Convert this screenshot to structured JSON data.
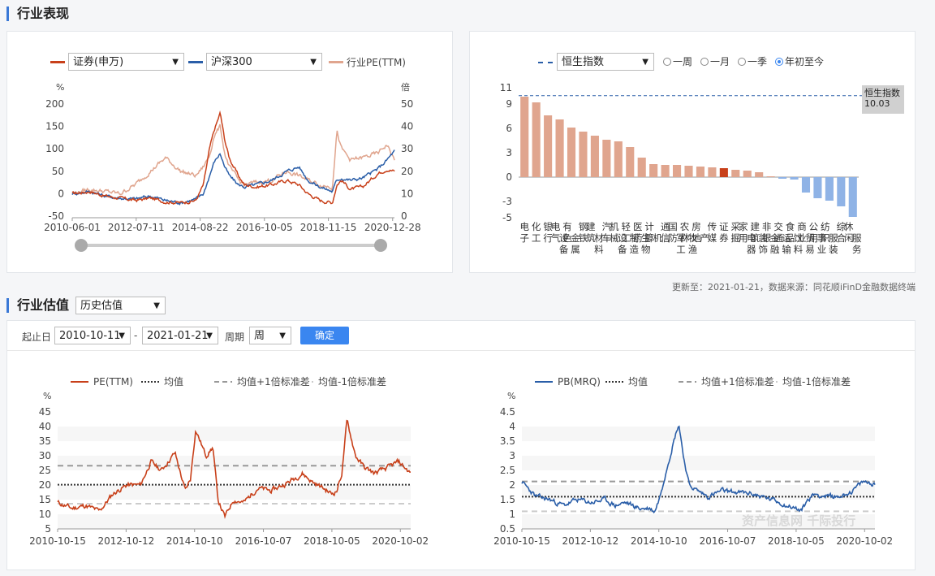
{
  "sections": {
    "industry_perf": "行业表现",
    "industry_val": "行业估值"
  },
  "perf_controls": {
    "legend": [
      {
        "label": "证券(申万)",
        "color": "#c8401a"
      },
      {
        "label": "沪深300",
        "color": "#2a5ea8"
      },
      {
        "label": "行业PE(TTM)",
        "color": "#e0a58e"
      }
    ]
  },
  "bar_controls": {
    "index_label": "恒生指数",
    "radios": [
      {
        "label": "一周",
        "on": false
      },
      {
        "label": "一月",
        "on": false
      },
      {
        "label": "一季",
        "on": false
      },
      {
        "label": "年初至今",
        "on": true
      }
    ],
    "ref_label": "恒生指数",
    "ref_value": "10.03"
  },
  "update_note": "更新至：2021-01-21，数据来源：同花顺iFinD金融数据终端",
  "val_controls": {
    "mode": "历史估值",
    "start_label": "起止日",
    "start": "2010-10-11",
    "dash": "-",
    "end": "2021-01-21",
    "period_label": "周期",
    "period": "周",
    "confirm": "确定"
  },
  "watermark": "资产信息网 千际投行",
  "chart_data": [
    {
      "type": "line",
      "ylabel_left": "%",
      "ylabel_right": "倍",
      "ylim_left": [
        -50,
        200
      ],
      "ylim_right": [
        0,
        50
      ],
      "yticks_left": [
        -50,
        0,
        50,
        100,
        150,
        200
      ],
      "yticks_right": [
        0,
        10,
        20,
        30,
        40,
        50
      ],
      "xticks": [
        "2010-06-01",
        "2012-07-11",
        "2014-08-22",
        "2016-10-05",
        "2018-11-15",
        "2020-12-28"
      ],
      "x": [
        2010.42,
        2011.0,
        2011.5,
        2012.0,
        2012.5,
        2013.0,
        2013.5,
        2014.0,
        2014.5,
        2014.75,
        2014.95,
        2015.1,
        2015.3,
        2015.45,
        2015.6,
        2015.9,
        2016.1,
        2016.5,
        2017.0,
        2017.5,
        2017.9,
        2018.2,
        2018.6,
        2019.0,
        2019.15,
        2019.3,
        2019.6,
        2020.0,
        2020.5,
        2020.8,
        2021.05
      ],
      "series": [
        {
          "name": "证券(申万)",
          "color": "#c8401a",
          "axis": "left",
          "values": [
            0,
            5,
            -5,
            -10,
            -15,
            -10,
            -18,
            -20,
            -15,
            20,
            100,
            140,
            180,
            120,
            80,
            40,
            20,
            15,
            20,
            30,
            20,
            0,
            -15,
            -20,
            20,
            30,
            10,
            15,
            45,
            55,
            50
          ]
        },
        {
          "name": "沪深300",
          "color": "#2a5ea8",
          "axis": "left",
          "values": [
            0,
            5,
            -5,
            -10,
            -12,
            -5,
            -15,
            -20,
            -12,
            0,
            40,
            70,
            90,
            60,
            40,
            20,
            15,
            20,
            30,
            50,
            60,
            30,
            15,
            5,
            30,
            35,
            30,
            35,
            55,
            75,
            95
          ]
        },
        {
          "name": "行业PE(TTM)",
          "color": "#e0a58e",
          "axis": "right",
          "values": [
            10,
            12,
            11,
            10,
            14,
            20,
            26,
            20,
            18,
            22,
            27,
            36,
            40,
            28,
            22,
            16,
            14,
            15,
            16,
            20,
            18,
            16,
            14,
            13,
            38,
            30,
            25,
            26,
            28,
            32,
            25
          ]
        }
      ]
    },
    {
      "type": "bar",
      "yticks": [
        -5,
        -3,
        0,
        3,
        6,
        9,
        11
      ],
      "ylim": [
        -5,
        11
      ],
      "reference": {
        "name": "恒生指数",
        "value": 10.03
      },
      "categories": [
        "电子",
        "化工",
        "银行",
        "电气设备",
        "有色金属",
        "钢铁",
        "建筑材料",
        "汽车",
        "机械设备",
        "轻工制造",
        "医药生物",
        "计算机",
        "通信",
        "国防军工",
        "农林牧渔",
        "房地产",
        "传媒",
        "证券",
        "采掘",
        "家用电器",
        "建筑装饰",
        "非银金融",
        "交通运输",
        "食品饮料",
        "商业贸易",
        "公用事业",
        "纺织服装",
        "综合",
        "休闲服务"
      ],
      "values": [
        9.9,
        9.2,
        7.6,
        7.1,
        6.1,
        5.6,
        5.1,
        4.6,
        4.4,
        3.7,
        2.4,
        1.6,
        1.5,
        1.5,
        1.4,
        1.3,
        1.2,
        1.1,
        0.9,
        0.8,
        0.6,
        0.1,
        -0.2,
        -0.3,
        -1.9,
        -2.6,
        -2.9,
        -3.6,
        -4.9
      ],
      "highlight": "证券",
      "colors": {
        "positive": "#e0a58e",
        "highlight": "#c8401a",
        "negative": "#8fb3e6"
      }
    },
    {
      "type": "line",
      "legend": [
        "PE(TTM)",
        "均值",
        "均值+1倍标准差",
        "均值-1倍标准差"
      ],
      "ylabel": "%",
      "ylim": [
        5,
        45
      ],
      "yticks": [
        5,
        10,
        15,
        20,
        25,
        30,
        35,
        40,
        45
      ],
      "xticks": [
        "2010-10-15",
        "2012-10-12",
        "2014-10-10",
        "2016-10-07",
        "2018-10-05",
        "2020-10-02"
      ],
      "x": [
        2010.79,
        2011.2,
        2011.6,
        2012.0,
        2012.4,
        2012.8,
        2013.2,
        2013.5,
        2013.8,
        2014.2,
        2014.5,
        2014.65,
        2014.8,
        2015.1,
        2015.3,
        2015.45,
        2015.65,
        2015.9,
        2016.2,
        2016.6,
        2017.0,
        2017.5,
        2017.9,
        2018.2,
        2018.5,
        2018.75,
        2018.9,
        2019.05,
        2019.2,
        2019.45,
        2019.7,
        2020.0,
        2020.4,
        2020.7,
        2021.05
      ],
      "series": [
        {
          "name": "PE(TTM)",
          "color": "#c8401a",
          "values": [
            14,
            12,
            13,
            11,
            17,
            20,
            20,
            28,
            25,
            31,
            18,
            22,
            39,
            30,
            33,
            15,
            9,
            15,
            14,
            19,
            18,
            21,
            24,
            21,
            19,
            17,
            18,
            24,
            42,
            30,
            26,
            24,
            26,
            28,
            24
          ]
        }
      ],
      "mean": 20.1,
      "upper": 26.6,
      "lower": 13.6
    },
    {
      "type": "line",
      "legend": [
        "PB(MRQ)",
        "均值",
        "均值+1倍标准差",
        "均值-1倍标准差"
      ],
      "ylabel": "%",
      "ylim": [
        0.5,
        4.5
      ],
      "yticks": [
        0.5,
        1,
        1.5,
        2,
        2.5,
        3,
        3.5,
        4,
        4.5
      ],
      "xticks": [
        "2010-10-15",
        "2012-10-12",
        "2014-10-10",
        "2016-10-07",
        "2018-10-05",
        "2020-10-02"
      ],
      "x": [
        2010.79,
        2011.2,
        2011.6,
        2012.0,
        2012.4,
        2012.8,
        2013.2,
        2013.5,
        2013.8,
        2014.2,
        2014.5,
        2014.65,
        2014.8,
        2015.0,
        2015.2,
        2015.35,
        2015.5,
        2015.65,
        2015.9,
        2016.2,
        2016.6,
        2017.0,
        2017.5,
        2017.9,
        2018.2,
        2018.5,
        2018.75,
        2018.9,
        2019.1,
        2019.3,
        2019.7,
        2020.0,
        2020.4,
        2020.7,
        2021.05
      ],
      "series": [
        {
          "name": "PB(MRQ)",
          "color": "#2a5ea8",
          "values": [
            2.1,
            1.6,
            1.5,
            1.3,
            1.5,
            1.4,
            1.5,
            1.3,
            1.4,
            1.2,
            1.2,
            1.1,
            1.6,
            2.6,
            3.5,
            4.1,
            2.9,
            2.0,
            1.8,
            1.6,
            1.8,
            1.75,
            1.7,
            1.55,
            1.45,
            1.3,
            1.2,
            1.1,
            1.5,
            1.7,
            1.6,
            1.6,
            1.8,
            2.1,
            2.05
          ]
        }
      ],
      "mean": 1.6,
      "upper": 2.12,
      "lower": 1.1
    }
  ]
}
